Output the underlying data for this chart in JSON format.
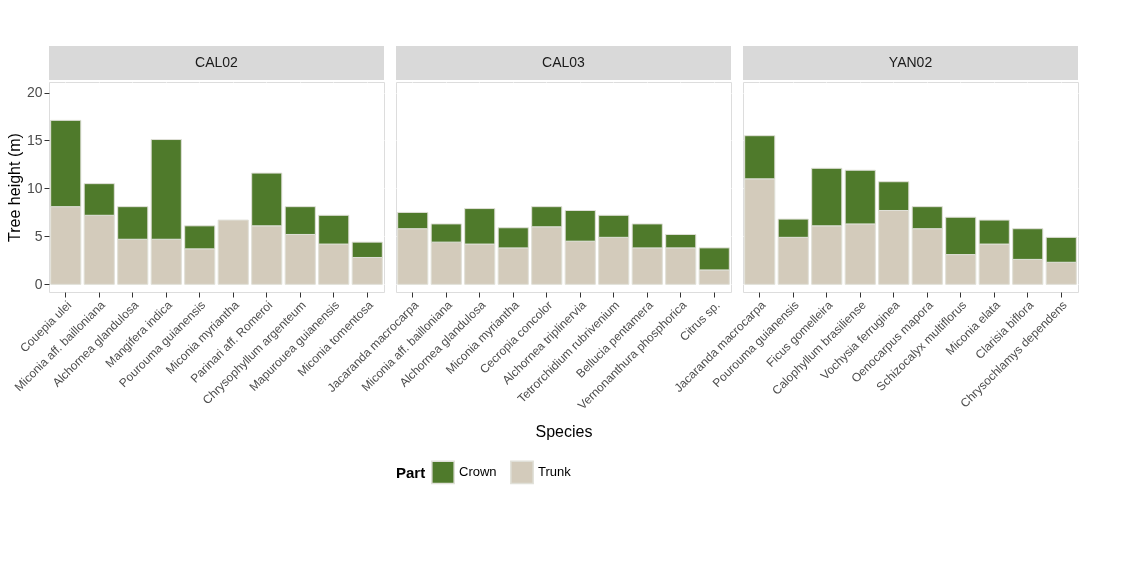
{
  "chart_data": [
    {
      "type": "bar",
      "title": "CAL02",
      "ylabel": "Tree height (m)",
      "stacked": true,
      "grid": true,
      "ylim": [
        -0.8,
        21.1
      ],
      "yticks": [
        0,
        5,
        10,
        15,
        20
      ],
      "legend": false,
      "categories": [
        "Couepia ulei",
        "Miconia aff. bailloniana",
        "Alchornea glandulosa",
        "Mangifera indica",
        "Pourouma guianensis",
        "Miconia myriantha",
        "Parinari aff. Romeroi",
        "Chrysophyllum argenteum",
        "Mapurouea guianensis",
        "Miconia tomentosa"
      ],
      "series": [
        {
          "color": "#d3cbbb",
          "values": [
            8.1,
            7.2,
            4.7,
            4.7,
            3.7,
            6.7,
            6.1,
            5.2,
            4.2,
            2.8
          ]
        },
        {
          "color": "#4f7a2b",
          "values": [
            9.0,
            3.3,
            3.4,
            10.4,
            2.4,
            null,
            5.5,
            2.9,
            3.0,
            1.6
          ]
        }
      ]
    },
    {
      "type": "bar",
      "title": "CAL03",
      "xlabel": "Species",
      "legend_title": "Part",
      "stacked": true,
      "grid": true,
      "ylim": [
        -0.8,
        21.1
      ],
      "yticks": [
        0,
        5,
        10,
        15,
        20
      ],
      "tick_labels": "x",
      "legend": "bottom",
      "categories": [
        "Jacaranda macrocarpa",
        "Miconia aff. bailloniana",
        "Alchornea glandulosa",
        "Miconia myriantha",
        "Cecropia concolor",
        "Alchornea triplinervia",
        "Tetrorchidium rubrivenium",
        "Bellucia pentamera",
        "Vernonanthura phosphorica",
        "Citrus sp."
      ],
      "series": [
        {
          "name": "Trunk",
          "color": "#d3cbbb",
          "values": [
            5.8,
            4.4,
            4.2,
            3.8,
            6.0,
            4.5,
            4.9,
            3.8,
            3.8,
            1.5
          ]
        },
        {
          "name": "Crown",
          "color": "#4f7a2b",
          "values": [
            1.7,
            1.9,
            3.7,
            2.1,
            2.1,
            3.2,
            2.3,
            2.5,
            1.4,
            2.3
          ]
        }
      ]
    },
    {
      "type": "bar",
      "title": "YAN02",
      "stacked": true,
      "grid": true,
      "ylim": [
        -0.8,
        21.1
      ],
      "yticks": [
        0,
        5,
        10,
        15,
        20
      ],
      "tick_labels": "x",
      "legend": false,
      "categories": [
        "Jacaranda macrocarpa",
        "Pourouma guianensis",
        "Ficus gomelleira",
        "Calophyllum brasiliense",
        "Vochysia ferruginea",
        "Oenocarpus mapora",
        "Schizocalyx multiflorus",
        "Miconia elata",
        "Clarisia biflora",
        "Chrysochlamys dependens"
      ],
      "series": [
        {
          "color": "#d3cbbb",
          "values": [
            11.0,
            4.9,
            6.1,
            6.3,
            7.7,
            5.8,
            3.1,
            4.2,
            2.6,
            2.3
          ]
        },
        {
          "color": "#4f7a2b",
          "values": [
            4.5,
            1.9,
            6.0,
            5.6,
            3.0,
            2.3,
            3.9,
            2.5,
            3.2,
            2.6
          ]
        }
      ]
    }
  ]
}
